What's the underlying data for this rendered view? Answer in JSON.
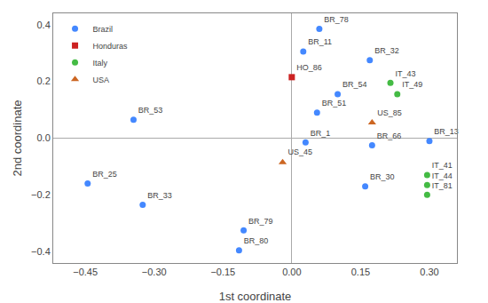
{
  "chart_data": {
    "type": "scatter",
    "xlabel": "1st coordinate",
    "ylabel": "2nd coordinate",
    "xlim": [
      -0.52,
      0.36
    ],
    "ylim": [
      -0.44,
      0.44
    ],
    "xticks": [
      {
        "value": -0.45,
        "label": "−0.45"
      },
      {
        "value": -0.3,
        "label": "−0.30"
      },
      {
        "value": -0.15,
        "label": "−0.15"
      },
      {
        "value": 0.0,
        "label": "0.00"
      },
      {
        "value": 0.15,
        "label": "0.15"
      },
      {
        "value": 0.3,
        "label": "0.30"
      }
    ],
    "yticks": [
      {
        "value": -0.4,
        "label": "−0.4"
      },
      {
        "value": -0.2,
        "label": "−0.2"
      },
      {
        "value": 0.0,
        "label": "0.0"
      },
      0.2,
      0.4
    ],
    "grid": false,
    "legend": "upper left",
    "series": [
      {
        "name": "Brazil",
        "color": "#4488ff",
        "marker": "circle",
        "x": [
          0.06,
          0.17,
          0.025,
          -0.345,
          0.1,
          0.055,
          0.03,
          0.175,
          0.3,
          0.16,
          -0.445,
          -0.325,
          -0.105,
          -0.115
        ],
        "y": [
          0.385,
          0.275,
          0.305,
          0.065,
          0.155,
          0.09,
          -0.015,
          -0.025,
          -0.01,
          -0.17,
          -0.16,
          -0.235,
          -0.325,
          -0.395
        ],
        "labels": [
          "BR_78",
          "BR_32",
          "BR_11",
          "BR_53",
          "BR_54",
          "BR_51",
          "BR_1",
          "BR_66",
          "BR_13",
          "BR_30",
          "BR_25",
          "BR_33",
          "BR_79",
          "BR_80"
        ]
      },
      {
        "name": "Honduras",
        "color": "#cc2222",
        "marker": "square",
        "x": [
          0.0
        ],
        "y": [
          0.215
        ],
        "labels": [
          "HO_86"
        ]
      },
      {
        "name": "Italy",
        "color": "#44bb44",
        "marker": "circle",
        "x": [
          0.215,
          0.23,
          0.295,
          0.295,
          0.295
        ],
        "y": [
          0.195,
          0.155,
          -0.13,
          -0.165,
          -0.2
        ],
        "labels": [
          "IT_43",
          "IT_49",
          "IT_41",
          "IT_44",
          "IT_81"
        ]
      },
      {
        "name": "USA",
        "color": "#cc6622",
        "marker": "triangle",
        "x": [
          0.175,
          -0.02
        ],
        "y": [
          0.055,
          -0.085
        ],
        "labels": [
          "US_85",
          "US_45"
        ]
      }
    ]
  }
}
